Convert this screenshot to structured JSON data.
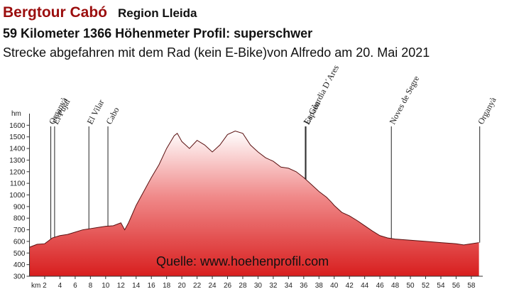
{
  "chart_data": {
    "type": "area",
    "title": "Bergtour Cabó",
    "subtitle": "Region Lleida",
    "info": "59 Kilometer  1366 Höhenmeter  Profil: superschwer",
    "description": "Strecke abgefahren mit dem Rad (kein E-Bike)von Alfredo am 20. Mai 2021",
    "source": "Quelle: www.hoehenprofil.com",
    "xlabel": "km",
    "ylabel": "hm",
    "color": "#d81e1e",
    "x": [
      0,
      1,
      2,
      3,
      4,
      5,
      6,
      7,
      8,
      9,
      10,
      11,
      12,
      12.5,
      13,
      14,
      15,
      16,
      17,
      18,
      19,
      19.4,
      20,
      21,
      22,
      23,
      24,
      25,
      26,
      27,
      28,
      29,
      30,
      31,
      32,
      33,
      34,
      35,
      36,
      37,
      38,
      39,
      39.6,
      40,
      41,
      42,
      43,
      44,
      45,
      46,
      47,
      48,
      50,
      52,
      54,
      56,
      57,
      58,
      59
    ],
    "values": [
      550,
      575,
      580,
      630,
      650,
      660,
      680,
      700,
      710,
      720,
      730,
      735,
      760,
      700,
      760,
      910,
      1030,
      1150,
      1260,
      1400,
      1510,
      1530,
      1460,
      1400,
      1470,
      1430,
      1370,
      1430,
      1520,
      1550,
      1530,
      1430,
      1370,
      1320,
      1290,
      1240,
      1230,
      1200,
      1150,
      1090,
      1030,
      980,
      940,
      910,
      850,
      820,
      780,
      735,
      690,
      650,
      630,
      620,
      610,
      600,
      590,
      580,
      570,
      580,
      590
    ],
    "xlim": [
      0,
      59.5
    ],
    "ylim": [
      300,
      1700
    ],
    "xticks": [
      2,
      4,
      6,
      8,
      10,
      12,
      14,
      16,
      18,
      20,
      22,
      24,
      26,
      28,
      30,
      32,
      34,
      36,
      38,
      40,
      42,
      44,
      46,
      48,
      50,
      52,
      54,
      56,
      58
    ],
    "yticks": [
      300,
      400,
      500,
      600,
      700,
      800,
      900,
      1000,
      1100,
      1200,
      1300,
      1400,
      1500,
      1600
    ],
    "annotations": [
      {
        "label": "Organyà",
        "x": 2.8
      },
      {
        "label": "El Pujal",
        "x": 3.3
      },
      {
        "label": "El Vilar",
        "x": 7.8
      },
      {
        "label": "Cabo",
        "x": 10.3
      },
      {
        "label": "La Gùardia D´Ares",
        "x": 36.2
      },
      {
        "label": "Espaén",
        "x": 36.3
      },
      {
        "label": "Noves de Segre",
        "x": 47.5
      },
      {
        "label": "Organyà",
        "x": 59.1
      }
    ]
  }
}
